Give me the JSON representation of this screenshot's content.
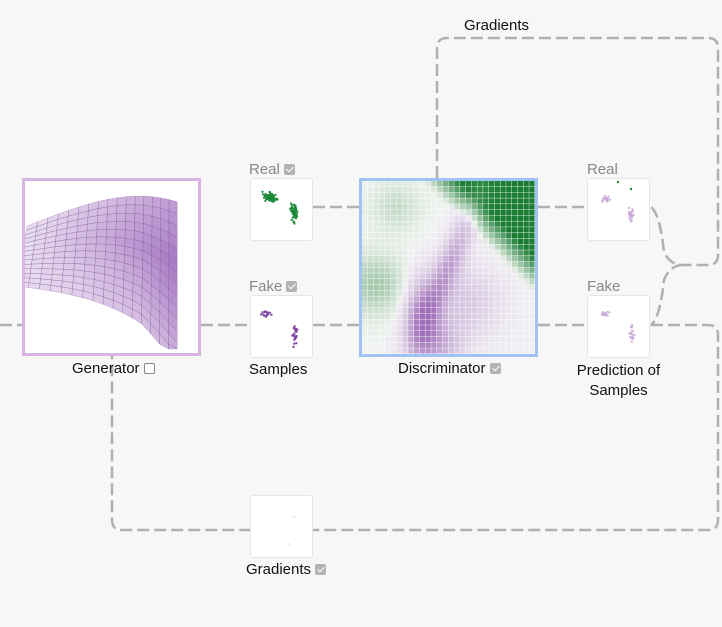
{
  "labels": {
    "gradients_top": "Gradients",
    "real_samples": "Real",
    "fake_samples": "Fake",
    "samples": "Samples",
    "generator": "Generator",
    "discriminator": "Discriminator",
    "real_prediction": "Real",
    "fake_prediction": "Fake",
    "prediction_of_samples_line1": "Prediction of",
    "prediction_of_samples_line2": "Samples",
    "gradients_bottom": "Gradients"
  },
  "toggles": {
    "real_samples": true,
    "fake_samples": true,
    "generator": false,
    "discriminator": true,
    "gradients_bottom": true
  },
  "colors": {
    "real_green": "#1a8a3a",
    "fake_purple": "#7b3f9e",
    "generator_border": "#d8b4e0",
    "discriminator_border": "#9fc3f5",
    "connector": "#b0b0b0"
  }
}
